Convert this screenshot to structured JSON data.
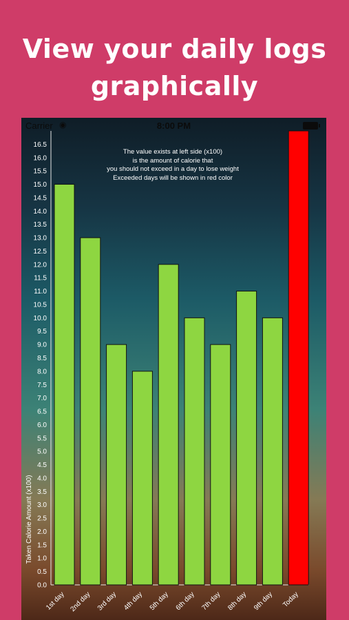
{
  "headline": {
    "line1": "View your daily logs",
    "line2": "graphically"
  },
  "status_bar": {
    "carrier": "Carrier",
    "wifi_icon": "wifi-icon",
    "time": "8:00 PM",
    "battery_icon": "battery-icon"
  },
  "note": {
    "lines": [
      "The value exists at left side (x100)",
      "is the amount of calorie that",
      "you should not exceed in a day to lose weight",
      "Exceeded days will be shown in red color"
    ]
  },
  "colors": {
    "normal_bar": "#8ed641",
    "exceeded_bar": "#ff0000",
    "bar_stroke": "#111111",
    "text": "#ffffff"
  },
  "chart_data": {
    "type": "bar",
    "ylabel": "Taken Calorie Amount (x100)",
    "xlabel": "",
    "ylim": [
      0,
      17
    ],
    "y_ticks": [
      "0.0",
      "0.5",
      "1.0",
      "1.5",
      "2.0",
      "2.5",
      "3.0",
      "3.5",
      "4.0",
      "4.5",
      "5.0",
      "5.5",
      "6.0",
      "6.5",
      "7.0",
      "7.5",
      "8.0",
      "8.5",
      "9.0",
      "9.5",
      "10.0",
      "10.5",
      "11.0",
      "11.5",
      "12.0",
      "12.5",
      "13.0",
      "13.5",
      "14.0",
      "14.5",
      "15.0",
      "15.5",
      "16.0",
      "16.5"
    ],
    "categories": [
      "1st day",
      "2nd day",
      "3rd day",
      "4th day",
      "5th day",
      "6th day",
      "7th day",
      "8th day",
      "9th day",
      "Today"
    ],
    "values": [
      15,
      13,
      9,
      8,
      12,
      10,
      9,
      11,
      10,
      17
    ],
    "exceeded": [
      false,
      false,
      false,
      false,
      false,
      false,
      false,
      false,
      false,
      true
    ],
    "grid": false,
    "legend": "none"
  }
}
